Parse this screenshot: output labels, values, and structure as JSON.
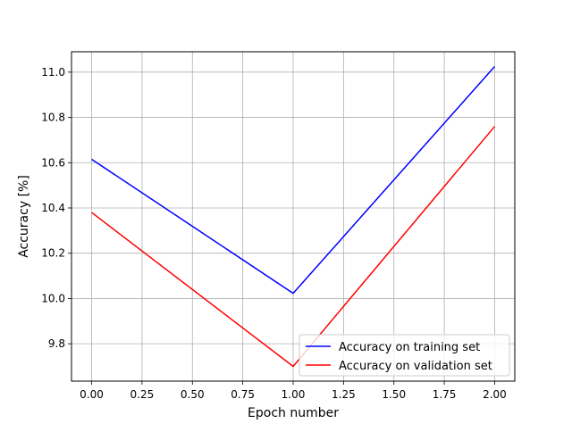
{
  "chart_data": {
    "type": "line",
    "title": "",
    "xlabel": "Epoch number",
    "ylabel": "Accuracy [%]",
    "xlim": [
      -0.1,
      2.1
    ],
    "ylim": [
      9.635,
      11.09
    ],
    "xticks": [
      0.0,
      0.25,
      0.5,
      0.75,
      1.0,
      1.25,
      1.5,
      1.75,
      2.0
    ],
    "xtick_labels": [
      "0.00",
      "0.25",
      "0.50",
      "0.75",
      "1.00",
      "1.25",
      "1.50",
      "1.75",
      "2.00"
    ],
    "yticks": [
      9.8,
      10.0,
      10.2,
      10.4,
      10.6,
      10.8,
      11.0
    ],
    "ytick_labels": [
      "9.8",
      "10.0",
      "10.2",
      "10.4",
      "10.6",
      "10.8",
      "11.0"
    ],
    "grid": true,
    "legend_position": "lower-right",
    "x": [
      0,
      1,
      2
    ],
    "series": [
      {
        "name": "Accuracy on training set",
        "values": [
          10.615,
          10.023,
          11.025
        ],
        "color": "#0000ff"
      },
      {
        "name": "Accuracy on validation set",
        "values": [
          10.38,
          9.7,
          10.76
        ],
        "color": "#ff0000"
      }
    ]
  }
}
